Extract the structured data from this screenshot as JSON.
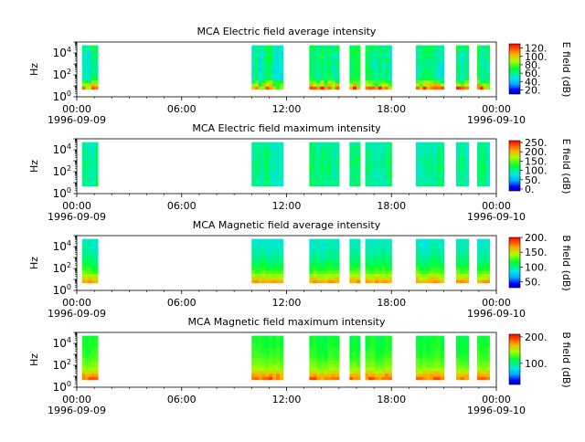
{
  "chart_data": [
    {
      "type": "heatmap",
      "title": "MCA  Electric field average intensity",
      "ylabel": "Hz",
      "y_scale": "log",
      "ylim": [
        1,
        100000
      ],
      "y_ticks": [
        {
          "value": 1,
          "base": "10",
          "exp": "0"
        },
        {
          "value": 100,
          "base": "10",
          "exp": "2"
        },
        {
          "value": 10000,
          "base": "10",
          "exp": "4"
        }
      ],
      "x_ticks": [
        "00:00",
        "06:00",
        "12:00",
        "18:00",
        "00:00"
      ],
      "x_tick_hours": [
        0,
        6,
        12,
        18,
        24
      ],
      "date_start": "1996-09-09",
      "date_end": "1996-09-10",
      "colorbar": {
        "label": "E field (dB)",
        "min": 10,
        "max": 130,
        "ticks": [
          20,
          40,
          60,
          80,
          100,
          120
        ],
        "tick_labels": [
          "20.",
          "40.",
          "60.",
          "80.",
          "100.",
          "120."
        ]
      },
      "data_intervals_hours": [
        [
          0.3,
          1.2
        ],
        [
          10.0,
          11.8
        ],
        [
          13.3,
          15.0
        ],
        [
          15.6,
          16.2
        ],
        [
          16.5,
          18.0
        ],
        [
          19.4,
          21.0
        ],
        [
          21.7,
          22.4
        ],
        [
          22.9,
          23.6
        ]
      ],
      "freq_range": [
        5,
        50000
      ],
      "profile": [
        65,
        60,
        58,
        60,
        62
      ],
      "low_boost": 40,
      "variability": 12,
      "seed": 3
    },
    {
      "type": "heatmap",
      "title": "MCA  Electric field maximum intensity",
      "ylabel": "Hz",
      "y_scale": "log",
      "ylim": [
        1,
        100000
      ],
      "y_ticks": [
        {
          "value": 1,
          "base": "10",
          "exp": "0"
        },
        {
          "value": 100,
          "base": "10",
          "exp": "2"
        },
        {
          "value": 10000,
          "base": "10",
          "exp": "4"
        }
      ],
      "x_ticks": [
        "00:00",
        "06:00",
        "12:00",
        "18:00",
        "00:00"
      ],
      "x_tick_hours": [
        0,
        6,
        12,
        18,
        24
      ],
      "date_start": "1996-09-09",
      "date_end": "1996-09-10",
      "colorbar": {
        "label": "E field (dB)",
        "min": -10,
        "max": 260,
        "ticks": [
          0,
          50,
          100,
          150,
          200,
          250
        ],
        "tick_labels": [
          "0.",
          "50.",
          "100.",
          "150.",
          "200.",
          "250."
        ]
      },
      "data_intervals_hours": [
        [
          0.3,
          1.2
        ],
        [
          10.0,
          11.8
        ],
        [
          13.3,
          15.0
        ],
        [
          15.6,
          16.2
        ],
        [
          16.5,
          18.0
        ],
        [
          19.4,
          21.0
        ],
        [
          21.7,
          22.4
        ],
        [
          22.9,
          23.6
        ]
      ],
      "freq_range": [
        5,
        50000
      ],
      "profile": [
        95,
        100,
        105,
        100,
        95
      ],
      "low_boost": 5,
      "variability": 20,
      "seed": 7
    },
    {
      "type": "heatmap",
      "title": "MCA  Magnetic field average intensity",
      "ylabel": "Hz",
      "y_scale": "log",
      "ylim": [
        1,
        100000
      ],
      "y_ticks": [
        {
          "value": 1,
          "base": "10",
          "exp": "0"
        },
        {
          "value": 100,
          "base": "10",
          "exp": "2"
        },
        {
          "value": 10000,
          "base": "10",
          "exp": "4"
        }
      ],
      "x_ticks": [
        "00:00",
        "06:00",
        "12:00",
        "18:00",
        "00:00"
      ],
      "x_tick_hours": [
        0,
        6,
        12,
        18,
        24
      ],
      "date_start": "1996-09-09",
      "date_end": "1996-09-10",
      "colorbar": {
        "label": "B field (dB)",
        "min": 30,
        "max": 200,
        "ticks": [
          50,
          100,
          150,
          200
        ],
        "tick_labels": [
          "50.",
          "100.",
          "150.",
          "200."
        ]
      },
      "data_intervals_hours": [
        [
          0.3,
          1.2
        ],
        [
          10.0,
          11.8
        ],
        [
          13.3,
          15.0
        ],
        [
          15.6,
          16.2
        ],
        [
          16.5,
          18.0
        ],
        [
          19.4,
          21.0
        ],
        [
          21.7,
          22.4
        ],
        [
          22.9,
          23.6
        ]
      ],
      "freq_range": [
        5,
        50000
      ],
      "profile": [
        150,
        125,
        105,
        95,
        90
      ],
      "low_boost": 15,
      "variability": 6,
      "seed": 11
    },
    {
      "type": "heatmap",
      "title": "MCA  Magnetic field maximum intensity",
      "ylabel": "Hz",
      "y_scale": "log",
      "ylim": [
        1,
        100000
      ],
      "y_ticks": [
        {
          "value": 1,
          "base": "10",
          "exp": "0"
        },
        {
          "value": 100,
          "base": "10",
          "exp": "2"
        },
        {
          "value": 10000,
          "base": "10",
          "exp": "4"
        }
      ],
      "x_ticks": [
        "00:00",
        "06:00",
        "12:00",
        "18:00",
        "00:00"
      ],
      "x_tick_hours": [
        0,
        6,
        12,
        18,
        24
      ],
      "date_start": "1996-09-09",
      "date_end": "1996-09-10",
      "colorbar": {
        "label": "B field (dB)",
        "min": 20,
        "max": 210,
        "ticks": [
          100,
          200
        ],
        "tick_labels": [
          "100.",
          "200."
        ]
      },
      "data_intervals_hours": [
        [
          0.3,
          1.2
        ],
        [
          10.0,
          11.8
        ],
        [
          13.3,
          15.0
        ],
        [
          15.6,
          16.2
        ],
        [
          16.5,
          18.0
        ],
        [
          19.4,
          21.0
        ],
        [
          21.7,
          22.4
        ],
        [
          22.9,
          23.6
        ]
      ],
      "freq_range": [
        5,
        50000
      ],
      "profile": [
        165,
        140,
        125,
        118,
        115
      ],
      "low_boost": 20,
      "variability": 6,
      "seed": 17
    }
  ]
}
